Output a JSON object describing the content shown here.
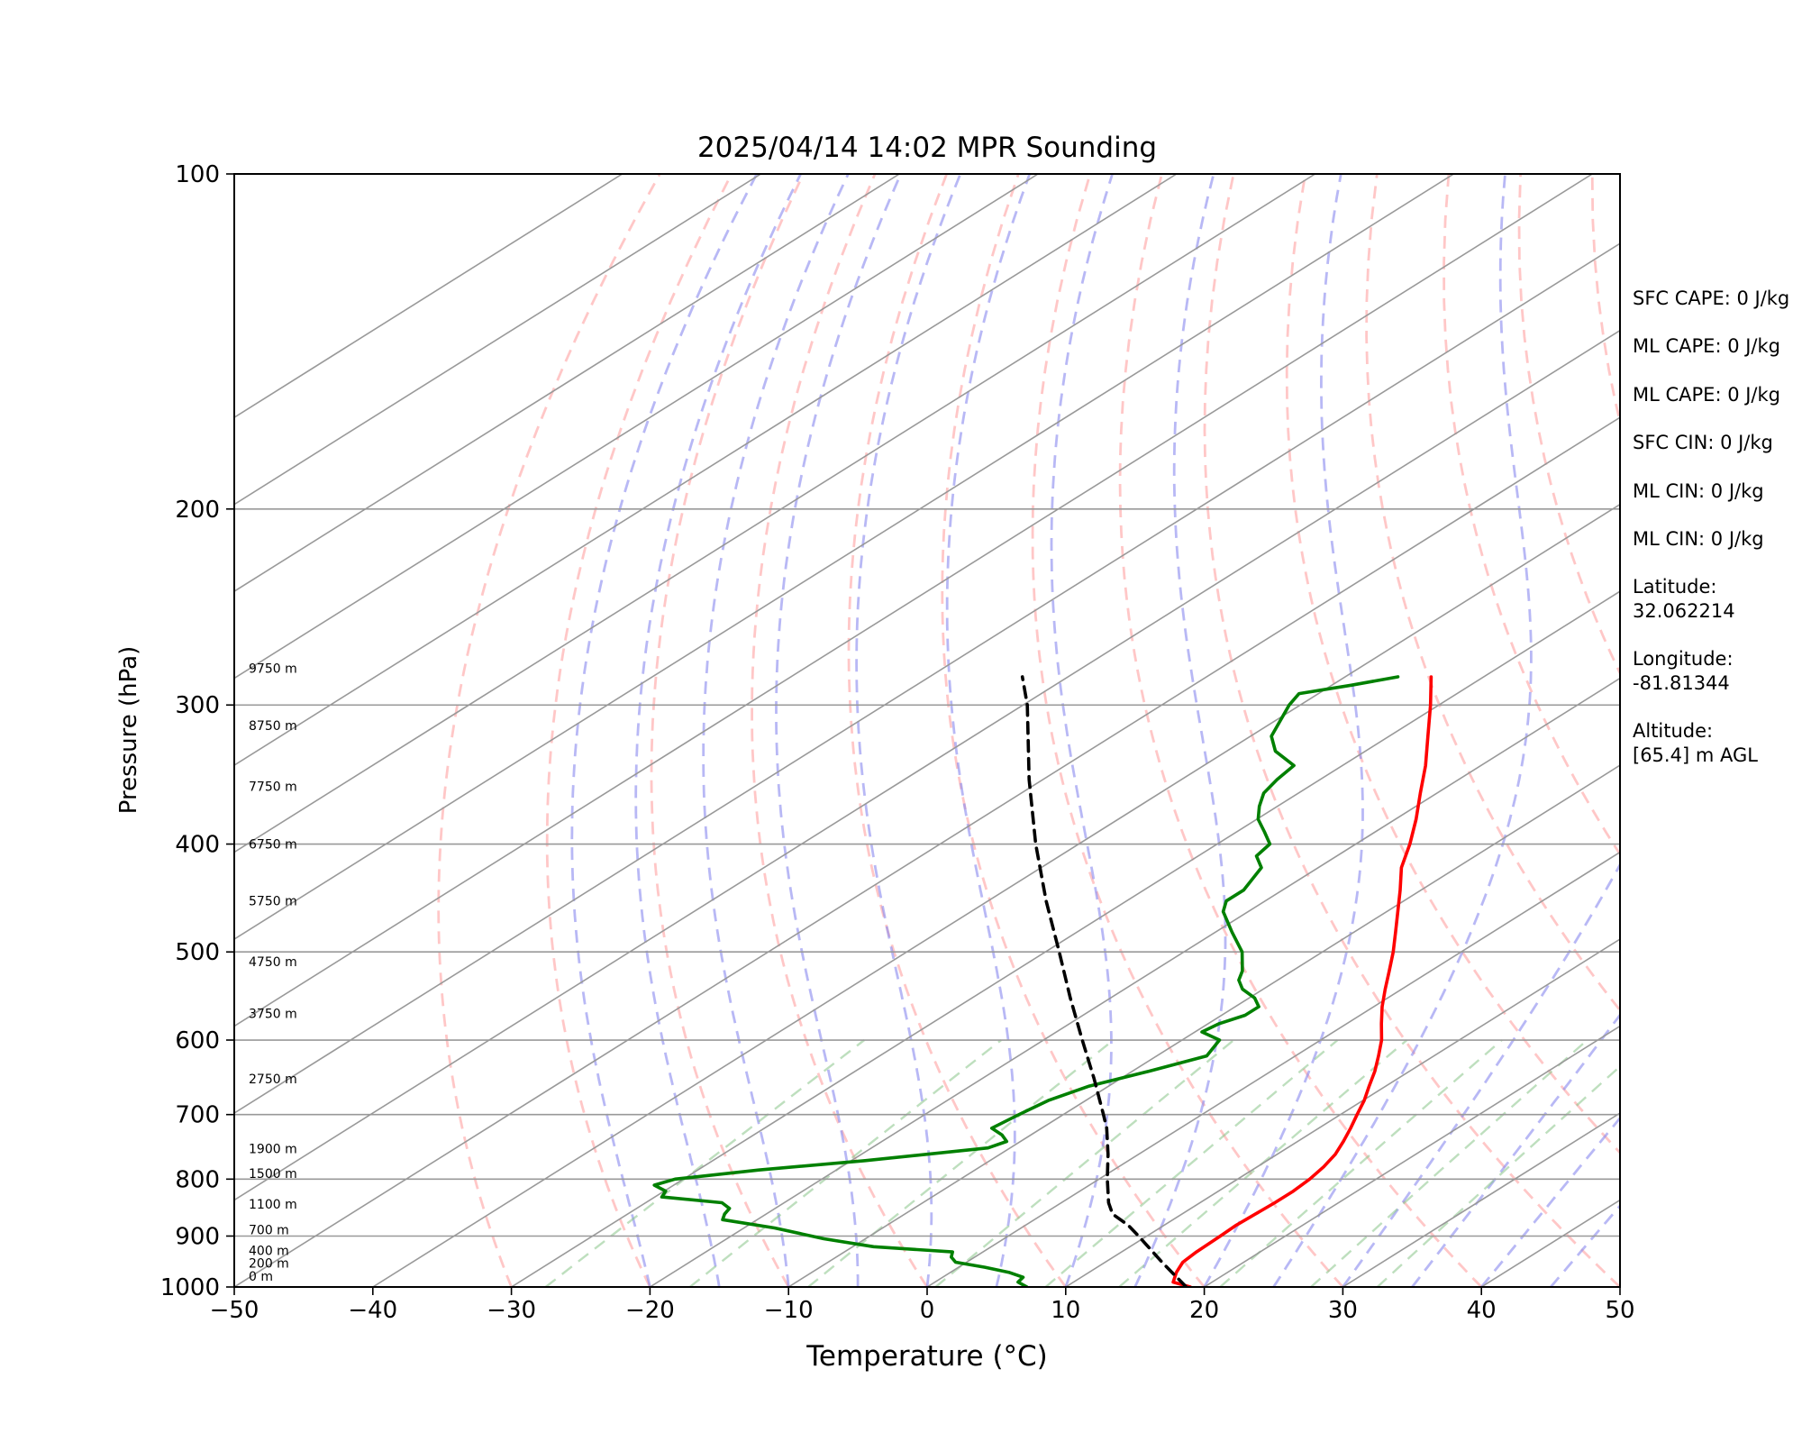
{
  "chart_data": {
    "type": "line",
    "title": "2025/04/14 14:02 MPR Sounding",
    "xlabel": "Temperature (°C)",
    "ylabel": "Pressure (hPa)",
    "xlim": [
      -50,
      50
    ],
    "ylim": [
      1000,
      100
    ],
    "y_scale": "log",
    "grid": true,
    "x_ticks": [
      "−50",
      "−40",
      "−30",
      "−20",
      "−10",
      "0",
      "10",
      "20",
      "30",
      "40",
      "50"
    ],
    "x_tick_values": [
      -50,
      -40,
      -30,
      -20,
      -10,
      0,
      10,
      20,
      30,
      40,
      50
    ],
    "y_ticks": [
      "100",
      "200",
      "300",
      "400",
      "500",
      "600",
      "700",
      "800",
      "900",
      "1000"
    ],
    "y_tick_values": [
      100,
      200,
      300,
      400,
      500,
      600,
      700,
      800,
      900,
      1000
    ],
    "height_labels": [
      {
        "text": "9750 m",
        "p": 278
      },
      {
        "text": "8750 m",
        "p": 313
      },
      {
        "text": "7750 m",
        "p": 355
      },
      {
        "text": "6750 m",
        "p": 400
      },
      {
        "text": "5750 m",
        "p": 450
      },
      {
        "text": "4750 m",
        "p": 510
      },
      {
        "text": "3750 m",
        "p": 568
      },
      {
        "text": "2750 m",
        "p": 650
      },
      {
        "text": "1900 m",
        "p": 751
      },
      {
        "text": "1500 m",
        "p": 791
      },
      {
        "text": "1100 m",
        "p": 842
      },
      {
        "text": "700 m",
        "p": 888
      },
      {
        "text": "400 m",
        "p": 927
      },
      {
        "text": "200 m",
        "p": 952
      },
      {
        "text": "0 m",
        "p": 978
      }
    ],
    "series": [
      {
        "color": "#ff0000",
        "style": "solid",
        "points": [
          [
            1000,
            19.0
          ],
          [
            990,
            17.2
          ],
          [
            970,
            16.3
          ],
          [
            950,
            15.6
          ],
          [
            930,
            15.4
          ],
          [
            900,
            15.3
          ],
          [
            880,
            15.2
          ],
          [
            860,
            15.3
          ],
          [
            840,
            15.4
          ],
          [
            820,
            15.4
          ],
          [
            800,
            15.2
          ],
          [
            780,
            14.8
          ],
          [
            760,
            14.2
          ],
          [
            740,
            13.3
          ],
          [
            720,
            12.3
          ],
          [
            700,
            11.2
          ],
          [
            680,
            10.1
          ],
          [
            660,
            8.8
          ],
          [
            640,
            7.5
          ],
          [
            620,
            6.0
          ],
          [
            600,
            4.4
          ],
          [
            580,
            2.5
          ],
          [
            560,
            0.6
          ],
          [
            540,
            -1.2
          ],
          [
            520,
            -3.0
          ],
          [
            500,
            -4.9
          ],
          [
            480,
            -7.0
          ],
          [
            460,
            -9.2
          ],
          [
            440,
            -11.5
          ],
          [
            420,
            -14.0
          ],
          [
            400,
            -16.1
          ],
          [
            380,
            -18.5
          ],
          [
            360,
            -21.2
          ],
          [
            340,
            -24.0
          ],
          [
            320,
            -27.2
          ],
          [
            300,
            -30.6
          ],
          [
            283,
            -33.8
          ]
        ]
      },
      {
        "color": "#008000",
        "style": "solid",
        "points": [
          [
            1000,
            7.2
          ],
          [
            990,
            6.0
          ],
          [
            980,
            5.8
          ],
          [
            970,
            4.2
          ],
          [
            960,
            1.9
          ],
          [
            950,
            -0.8
          ],
          [
            940,
            -1.7
          ],
          [
            930,
            -2.2
          ],
          [
            920,
            -8.5
          ],
          [
            905,
            -13.0
          ],
          [
            885,
            -17.8
          ],
          [
            870,
            -22.5
          ],
          [
            860,
            -23.0
          ],
          [
            850,
            -23.3
          ],
          [
            840,
            -24.5
          ],
          [
            830,
            -29.5
          ],
          [
            820,
            -29.9
          ],
          [
            810,
            -31.4
          ],
          [
            800,
            -30.6
          ],
          [
            785,
            -25.6
          ],
          [
            770,
            -19.0
          ],
          [
            750,
            -11.6
          ],
          [
            740,
            -11.0
          ],
          [
            730,
            -12.1
          ],
          [
            720,
            -13.6
          ],
          [
            700,
            -13.2
          ],
          [
            680,
            -12.7
          ],
          [
            660,
            -11.4
          ],
          [
            640,
            -8.8
          ],
          [
            620,
            -6.4
          ],
          [
            600,
            -7.3
          ],
          [
            590,
            -9.5
          ],
          [
            580,
            -9.2
          ],
          [
            570,
            -8.3
          ],
          [
            560,
            -8.3
          ],
          [
            550,
            -9.6
          ],
          [
            540,
            -11.5
          ],
          [
            530,
            -12.8
          ],
          [
            520,
            -13.6
          ],
          [
            500,
            -15.8
          ],
          [
            480,
            -18.8
          ],
          [
            460,
            -21.8
          ],
          [
            450,
            -22.8
          ],
          [
            440,
            -22.8
          ],
          [
            420,
            -24.1
          ],
          [
            410,
            -25.8
          ],
          [
            400,
            -26.2
          ],
          [
            390,
            -28.0
          ],
          [
            380,
            -29.9
          ],
          [
            370,
            -31.3
          ],
          [
            360,
            -32.5
          ],
          [
            350,
            -33.1
          ],
          [
            340,
            -33.5
          ],
          [
            330,
            -36.5
          ],
          [
            320,
            -38.5
          ],
          [
            300,
            -40.8
          ],
          [
            293,
            -41.4
          ],
          [
            288,
            -38.6
          ],
          [
            283,
            -36.2
          ]
        ]
      },
      {
        "color": "#000000",
        "style": "dashed",
        "points": [
          [
            1000,
            18.7
          ],
          [
            950,
            14.1
          ],
          [
            900,
            9.4
          ],
          [
            880,
            7.4
          ],
          [
            860,
            5.0
          ],
          [
            840,
            3.4
          ],
          [
            800,
            0.6
          ],
          [
            760,
            -2.2
          ],
          [
            720,
            -5.3
          ],
          [
            700,
            -7.1
          ],
          [
            650,
            -11.9
          ],
          [
            600,
            -17.2
          ],
          [
            550,
            -22.9
          ],
          [
            500,
            -29.0
          ],
          [
            450,
            -35.8
          ],
          [
            400,
            -43.1
          ],
          [
            350,
            -51.0
          ],
          [
            300,
            -59.7
          ],
          [
            283,
            -63.3
          ]
        ]
      }
    ]
  },
  "info": {
    "sfc_cape": "SFC CAPE: 0 J/kg",
    "ml_cape_1": "ML CAPE: 0 J/kg",
    "ml_cape_2": "ML CAPE: 0 J/kg",
    "sfc_cin": "SFC CIN: 0 J/kg",
    "ml_cin_1": "ML CIN: 0 J/kg",
    "ml_cin_2": "ML CIN: 0 J/kg",
    "latitude": "Latitude:\n32.062214",
    "longitude": "Longitude:\n-81.81344",
    "altitude": "Altitude:\n[65.4] m AGL"
  },
  "colors": {
    "temperature": "#ff0000",
    "dewpoint": "#008000",
    "parcel": "#000000",
    "dry_adiabat": "#ff9999",
    "moist_adiabat": "#8888ee",
    "mixing_ratio": "#88c488",
    "isotherm": "#999999"
  }
}
